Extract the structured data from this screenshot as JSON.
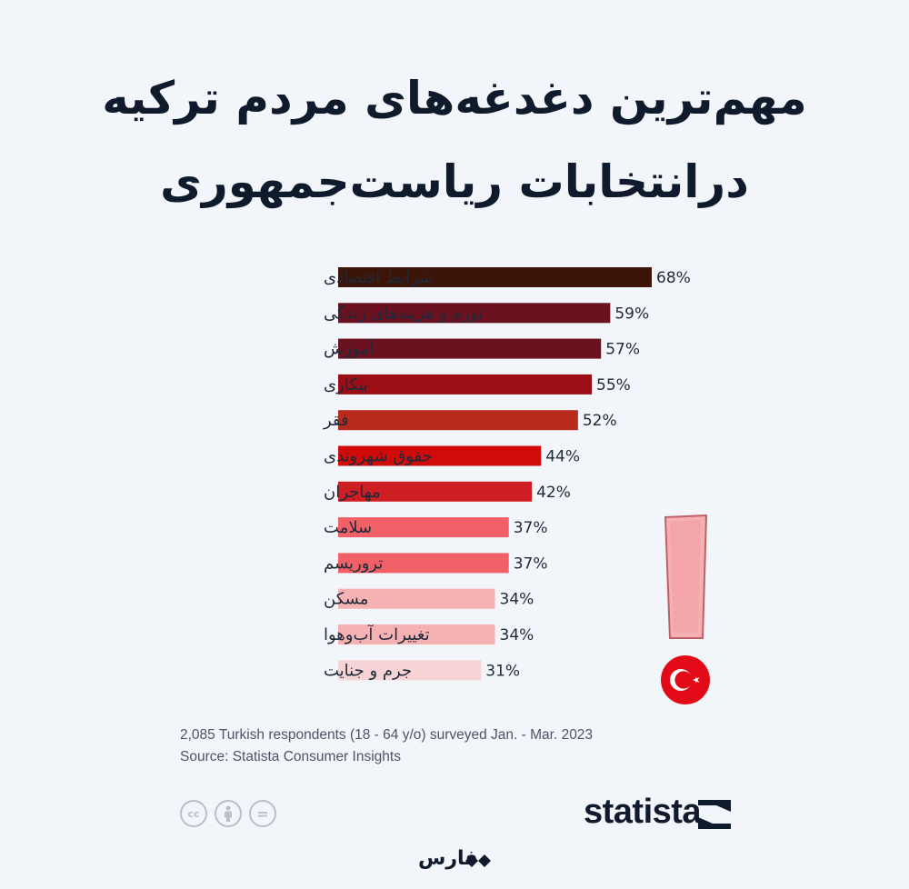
{
  "title": {
    "line1": "مهم‌ترین دغدغه‌های مردم ترکیه",
    "line2": "درانتخابات ریاست‌جمهوری"
  },
  "chart_data": {
    "type": "bar",
    "orientation": "horizontal",
    "title": "مهم‌ترین دغدغه‌های مردم ترکیه درانتخابات ریاست‌جمهوری",
    "categories": [
      "شرایط اقتصادی",
      "تورم و هزینه‌های زندگی",
      "آموزش",
      "بیکاری",
      "فقر",
      "حقوق شهروندی",
      "مهاجران",
      "سلامت",
      "تروریسم",
      "مسکن",
      "تغییرات آب‌وهوا",
      "جرم و جنایت"
    ],
    "values": [
      68,
      59,
      57,
      55,
      52,
      44,
      42,
      37,
      37,
      34,
      34,
      31
    ],
    "value_labels": [
      "68%",
      "59%",
      "57%",
      "55%",
      "52%",
      "44%",
      "42%",
      "37%",
      "37%",
      "34%",
      "34%",
      "31%"
    ],
    "colors": [
      "#3d1408",
      "#6b1220",
      "#6b1220",
      "#9c0e15",
      "#b82a1c",
      "#d10a0a",
      "#cf1e22",
      "#f06066",
      "#f06066",
      "#f6b1b3",
      "#f6b1b3",
      "#f6d4d5"
    ],
    "unit": "%",
    "xlim": [
      0,
      68
    ],
    "grid": false,
    "legend": "none"
  },
  "notes": {
    "respondents": "2,085 Turkish respondents (18 - 64 y/o) surveyed Jan. - Mar. 2023",
    "source": "Source: Statista Consumer Insights"
  },
  "brand": {
    "name": "statista"
  },
  "publisher": {
    "name": "فارس"
  },
  "license_icons": [
    "cc-icon",
    "by-icon",
    "nd-icon"
  ],
  "decoration": {
    "flag": "turkey-flag-icon",
    "exclamation": "exclamation-icon",
    "flag_color": "#e30a17",
    "exclamation_color": "#f4a9ab"
  }
}
